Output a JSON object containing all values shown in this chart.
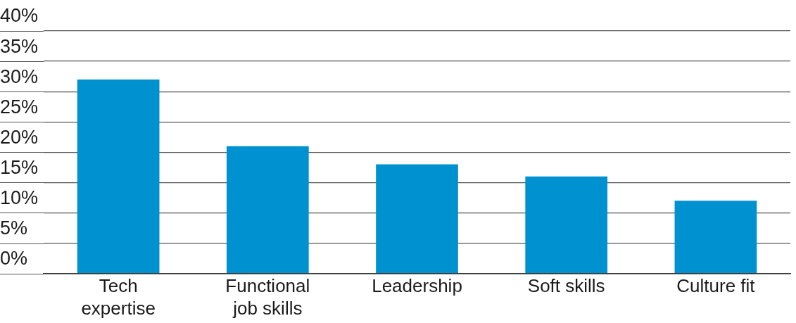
{
  "chart_data": {
    "type": "bar",
    "categories": [
      "Tech expertise",
      "Functional job skills",
      "Leadership",
      "Soft skills",
      "Culture fit"
    ],
    "values": [
      32,
      21,
      18,
      16,
      12
    ],
    "color": "#0091d0",
    "ylim": [
      0,
      40
    ],
    "yticks": [
      {
        "value": 0,
        "label": "0%"
      },
      {
        "value": 5,
        "label": "5%"
      },
      {
        "value": 10,
        "label": "10%"
      },
      {
        "value": 15,
        "label": "15%"
      },
      {
        "value": 20,
        "label": "20%"
      },
      {
        "value": 25,
        "label": "25%"
      },
      {
        "value": 30,
        "label": "30%"
      },
      {
        "value": 35,
        "label": "35%"
      },
      {
        "value": 40,
        "label": "40%"
      }
    ],
    "grid": "y"
  }
}
